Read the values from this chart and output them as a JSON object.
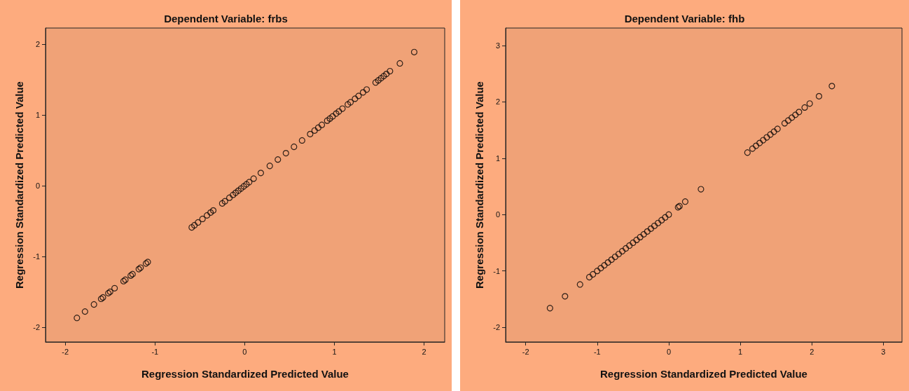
{
  "chart_data": [
    {
      "type": "scatter",
      "title": "Dependent Variable: frbs",
      "xlabel": "Regression Standardized Predicted Value",
      "ylabel": "Regression Standardized Predicted Value",
      "marker": "circle",
      "color": "#000000",
      "grid": false,
      "x": [
        -1.87,
        -1.78,
        -1.68,
        -1.6,
        -1.58,
        -1.52,
        -1.5,
        -1.45,
        -1.35,
        -1.33,
        -1.27,
        -1.25,
        -1.18,
        -1.16,
        -1.1,
        -1.08,
        -0.59,
        -0.56,
        -0.52,
        -0.47,
        -0.42,
        -0.38,
        -0.35,
        -0.25,
        -0.22,
        -0.17,
        -0.13,
        -0.1,
        -0.07,
        -0.04,
        -0.01,
        0.02,
        0.05,
        0.1,
        0.18,
        0.28,
        0.37,
        0.46,
        0.55,
        0.64,
        0.73,
        0.78,
        0.82,
        0.86,
        0.92,
        0.95,
        0.98,
        1.02,
        1.05,
        1.09,
        1.15,
        1.18,
        1.23,
        1.27,
        1.32,
        1.36,
        1.46,
        1.49,
        1.52,
        1.55,
        1.58,
        1.62,
        1.73,
        1.89
      ],
      "values": [
        -1.87,
        -1.78,
        -1.68,
        -1.6,
        -1.58,
        -1.52,
        -1.5,
        -1.45,
        -1.35,
        -1.33,
        -1.27,
        -1.25,
        -1.18,
        -1.16,
        -1.1,
        -1.08,
        -0.59,
        -0.56,
        -0.52,
        -0.47,
        -0.42,
        -0.38,
        -0.35,
        -0.25,
        -0.22,
        -0.17,
        -0.13,
        -0.1,
        -0.07,
        -0.04,
        -0.01,
        0.02,
        0.05,
        0.1,
        0.18,
        0.28,
        0.37,
        0.46,
        0.55,
        0.64,
        0.73,
        0.78,
        0.82,
        0.86,
        0.92,
        0.95,
        0.98,
        1.02,
        1.05,
        1.09,
        1.15,
        1.18,
        1.23,
        1.27,
        1.32,
        1.36,
        1.46,
        1.49,
        1.52,
        1.55,
        1.58,
        1.62,
        1.73,
        1.89
      ],
      "xlim": [
        -2.22,
        2.23
      ],
      "ylim": [
        -2.21,
        2.23
      ],
      "xticks": [
        -2,
        -1,
        0,
        1,
        2
      ],
      "yticks": [
        -2,
        -1,
        0,
        1,
        2
      ]
    },
    {
      "type": "scatter",
      "title": "Dependent Variable: fhb",
      "xlabel": "Regression Standardized Predicted Value",
      "ylabel": "Regression Standardized Predicted Value",
      "marker": "circle",
      "color": "#000000",
      "grid": false,
      "x": [
        -1.66,
        -1.45,
        -1.24,
        -1.11,
        -1.06,
        -1.0,
        -0.95,
        -0.9,
        -0.85,
        -0.8,
        -0.75,
        -0.7,
        -0.65,
        -0.6,
        -0.55,
        -0.5,
        -0.45,
        -0.4,
        -0.35,
        -0.3,
        -0.25,
        -0.2,
        -0.15,
        -0.1,
        -0.05,
        0,
        0.13,
        0.15,
        0.23,
        0.45,
        1.1,
        1.17,
        1.22,
        1.27,
        1.32,
        1.37,
        1.42,
        1.47,
        1.52,
        1.62,
        1.67,
        1.72,
        1.77,
        1.82,
        1.9,
        1.97,
        2.1,
        2.28
      ],
      "values": [
        -1.66,
        -1.45,
        -1.24,
        -1.11,
        -1.06,
        -1.0,
        -0.95,
        -0.9,
        -0.85,
        -0.8,
        -0.75,
        -0.7,
        -0.65,
        -0.6,
        -0.55,
        -0.5,
        -0.45,
        -0.4,
        -0.35,
        -0.3,
        -0.25,
        -0.2,
        -0.15,
        -0.1,
        -0.05,
        0,
        0.13,
        0.15,
        0.23,
        0.45,
        1.1,
        1.17,
        1.22,
        1.27,
        1.32,
        1.37,
        1.42,
        1.47,
        1.52,
        1.62,
        1.67,
        1.72,
        1.77,
        1.82,
        1.9,
        1.97,
        2.1,
        2.28
      ],
      "xlim": [
        -2.28,
        3.26
      ],
      "ylim": [
        -2.26,
        3.31
      ],
      "xticks": [
        -2,
        -1,
        0,
        1,
        2,
        3
      ],
      "yticks": [
        -2,
        -1,
        0,
        1,
        2,
        3
      ]
    }
  ]
}
